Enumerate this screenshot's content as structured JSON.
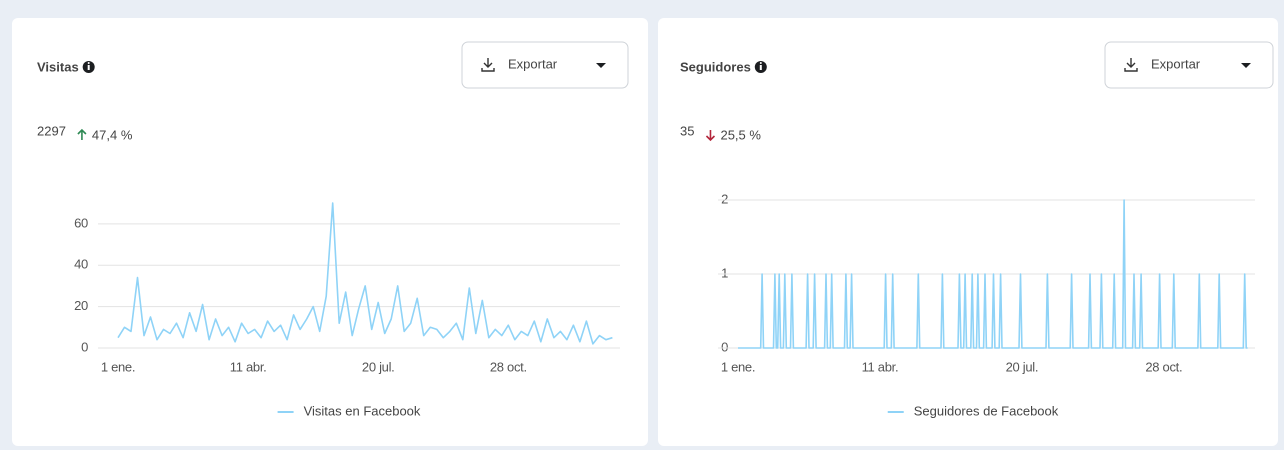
{
  "chart_data": [
    {
      "type": "line",
      "title": "Visitas",
      "total": 2297,
      "change": "47,4 %",
      "trend": "up",
      "export": "Exportar",
      "xlim": [
        0,
        382
      ],
      "xticks": [
        {
          "value": 0,
          "label": "1 ene."
        },
        {
          "value": 100,
          "label": "11 abr."
        },
        {
          "value": 200,
          "label": "20 jul."
        },
        {
          "value": 300,
          "label": "28 oct."
        }
      ],
      "ylim": [
        0,
        72
      ],
      "yticks": [
        0,
        20,
        40,
        60
      ],
      "grid": true,
      "x": [
        0,
        5,
        10,
        15,
        20,
        25,
        30,
        35,
        40,
        45,
        50,
        55,
        60,
        65,
        70,
        75,
        80,
        85,
        90,
        95,
        100,
        105,
        110,
        115,
        120,
        125,
        130,
        135,
        140,
        145,
        150,
        155,
        160,
        165,
        170,
        175,
        180,
        185,
        190,
        195,
        200,
        205,
        210,
        215,
        220,
        225,
        230,
        235,
        240,
        245,
        250,
        255,
        260,
        265,
        270,
        275,
        280,
        285,
        290,
        295,
        300,
        305,
        310,
        315,
        320,
        325,
        330,
        335,
        340,
        345,
        350,
        355,
        360,
        365,
        370,
        375,
        380
      ],
      "series": [
        {
          "name": "Visitas en Facebook",
          "color": "#8fd3f7",
          "values": [
            5,
            10,
            8,
            34,
            6,
            15,
            4,
            9,
            7,
            12,
            5,
            17,
            8,
            21,
            4,
            14,
            6,
            10,
            3,
            12,
            7,
            9,
            5,
            13,
            8,
            11,
            4,
            16,
            9,
            14,
            20,
            8,
            25,
            70,
            12,
            27,
            6,
            19,
            30,
            9,
            22,
            7,
            14,
            30,
            8,
            12,
            24,
            6,
            10,
            9,
            5,
            8,
            12,
            4,
            29,
            7,
            23,
            5,
            9,
            6,
            11,
            4,
            8,
            6,
            13,
            3,
            14,
            5,
            8,
            4,
            11,
            3,
            13,
            2,
            6,
            4,
            5
          ]
        }
      ]
    },
    {
      "type": "line",
      "title": "Seguidores",
      "total": 35,
      "change": "25,5 %",
      "trend": "down",
      "export": "Exportar",
      "xlim": [
        0,
        360
      ],
      "xticks": [
        {
          "value": 0,
          "label": "1 ene."
        },
        {
          "value": 100,
          "label": "11 abr."
        },
        {
          "value": 200,
          "label": "20 jul."
        },
        {
          "value": 300,
          "label": "28 oct."
        }
      ],
      "ylim": [
        0,
        2
      ],
      "yticks": [
        0,
        1,
        2
      ],
      "grid": true,
      "x": [
        0,
        16,
        17,
        18,
        25,
        26,
        27,
        28,
        29,
        30,
        32,
        33,
        34,
        37,
        38,
        39,
        48,
        49,
        50,
        53,
        54,
        55,
        61,
        62,
        63,
        65,
        66,
        67,
        75,
        76,
        77,
        79,
        80,
        81,
        103,
        104,
        105,
        108,
        109,
        110,
        126,
        127,
        128,
        143,
        144,
        145,
        155,
        156,
        157,
        159,
        160,
        161,
        164,
        165,
        166,
        168,
        169,
        170,
        173,
        174,
        175,
        179,
        180,
        181,
        184,
        185,
        186,
        198,
        199,
        200,
        217,
        218,
        219,
        234,
        235,
        236,
        247,
        248,
        249,
        255,
        256,
        257,
        264,
        265,
        266,
        271,
        272,
        273,
        278,
        279,
        280,
        283,
        284,
        285,
        296,
        297,
        298,
        306,
        307,
        308,
        324,
        325,
        326,
        338,
        339,
        340,
        356,
        357,
        358,
        359
      ],
      "series": [
        {
          "name": "Seguidores de Facebook",
          "color": "#8fd3f7",
          "values": [
            0,
            0,
            1,
            0,
            0,
            1,
            0,
            0,
            1,
            0,
            0,
            1,
            0,
            0,
            1,
            0,
            0,
            1,
            0,
            0,
            1,
            0,
            0,
            1,
            0,
            0,
            1,
            0,
            0,
            1,
            0,
            0,
            1,
            0,
            0,
            1,
            0,
            0,
            1,
            0,
            0,
            1,
            0,
            0,
            1,
            0,
            0,
            1,
            0,
            0,
            1,
            0,
            0,
            1,
            0,
            0,
            1,
            0,
            0,
            1,
            0,
            0,
            1,
            0,
            0,
            1,
            0,
            0,
            1,
            0,
            0,
            1,
            0,
            0,
            1,
            0,
            0,
            1,
            0,
            0,
            1,
            0,
            0,
            1,
            0,
            0,
            2,
            0,
            0,
            1,
            0,
            0,
            1,
            0,
            0,
            1,
            0,
            0,
            1,
            0,
            0,
            1,
            0,
            0,
            1,
            0,
            0,
            1,
            0,
            0
          ]
        }
      ]
    }
  ]
}
